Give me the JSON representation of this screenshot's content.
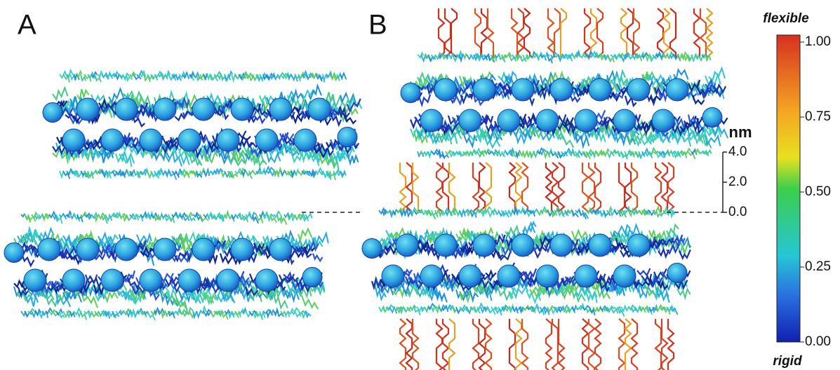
{
  "panels": {
    "a": "A",
    "b": "B"
  },
  "colorbar": {
    "top_label": "flexible",
    "bottom_label": "rigid",
    "ticks": [
      {
        "value": 1,
        "label": "1.00"
      },
      {
        "value": 0.75,
        "label": "0.75"
      },
      {
        "value": 0.5,
        "label": "0.50"
      },
      {
        "value": 0.25,
        "label": "0.25"
      },
      {
        "value": 0,
        "label": "0.00"
      }
    ]
  },
  "scale": {
    "unit": "nm",
    "ticks": [
      {
        "value": 4,
        "label": "4.0"
      },
      {
        "value": 2,
        "label": "2.0"
      },
      {
        "value": 0,
        "label": "0.0"
      }
    ]
  }
}
